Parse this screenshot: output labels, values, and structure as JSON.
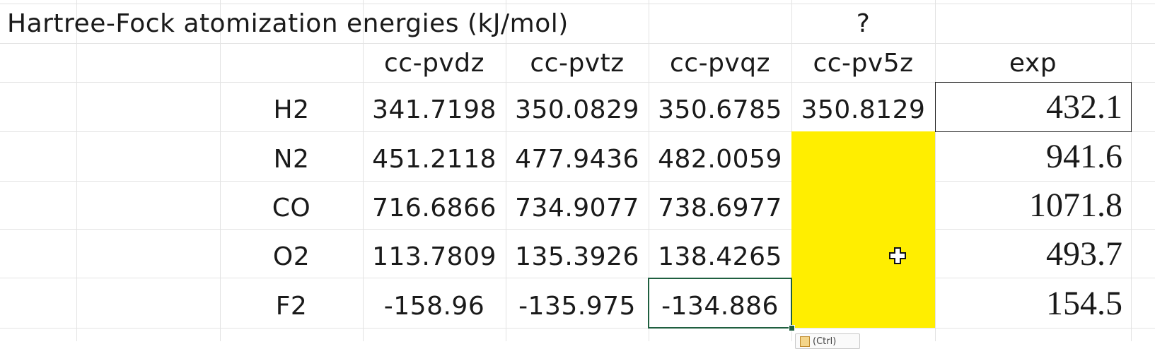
{
  "sheet": {
    "title": "Hartree-Fock atomization energies (kJ/mol)",
    "question_mark": "?",
    "headers": [
      "cc-pvdz",
      "cc-pvtz",
      "cc-pvqz",
      "cc-pv5z",
      "exp"
    ],
    "rows": [
      {
        "molecule": "H2",
        "dz": "341.7198",
        "tz": "350.0829",
        "qz": "350.6785",
        "pv5z": "350.8129",
        "exp": "432.1"
      },
      {
        "molecule": "N2",
        "dz": "451.2118",
        "tz": "477.9436",
        "qz": "482.0059",
        "pv5z": "",
        "exp": "941.6"
      },
      {
        "molecule": "CO",
        "dz": "716.6866",
        "tz": "734.9077",
        "qz": "738.6977",
        "pv5z": "",
        "exp": "1071.8"
      },
      {
        "molecule": "O2",
        "dz": "113.7809",
        "tz": "135.3926",
        "qz": "138.4265",
        "pv5z": "",
        "exp": "493.7"
      },
      {
        "molecule": "F2",
        "dz": "-158.96",
        "tz": "-135.975",
        "qz": "-134.886",
        "pv5z": "",
        "exp": "154.5"
      }
    ],
    "highlight_color": "#ffee00",
    "paste_options_label": "(Ctrl)"
  }
}
